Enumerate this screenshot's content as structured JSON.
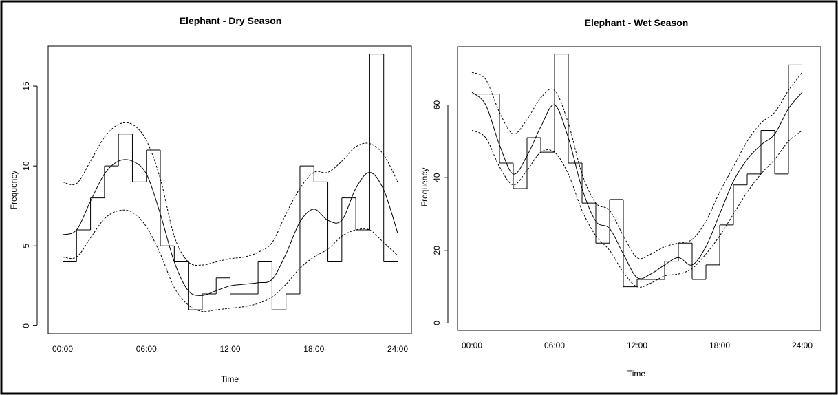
{
  "chart_data": [
    {
      "type": "bar",
      "title": "Elephant - Dry Season",
      "xlabel": "Time",
      "ylabel": "Frequency",
      "xlim": [
        0,
        24
      ],
      "ylim": [
        -0.5,
        17.5
      ],
      "x_ticks": [
        {
          "value": 0,
          "label": "00:00"
        },
        {
          "value": 6,
          "label": "06:00"
        },
        {
          "value": 12,
          "label": "12:00"
        },
        {
          "value": 18,
          "label": "18:00"
        },
        {
          "value": 24,
          "label": "24:00"
        }
      ],
      "y_ticks": [
        {
          "value": 0,
          "label": "0"
        },
        {
          "value": 5,
          "label": "5"
        },
        {
          "value": 10,
          "label": "10"
        },
        {
          "value": 15,
          "label": "15"
        }
      ],
      "bins": [
        {
          "start": 0,
          "end": 1,
          "value": 4
        },
        {
          "start": 1,
          "end": 2,
          "value": 6
        },
        {
          "start": 2,
          "end": 3,
          "value": 8
        },
        {
          "start": 3,
          "end": 4,
          "value": 10
        },
        {
          "start": 4,
          "end": 5,
          "value": 12
        },
        {
          "start": 5,
          "end": 6,
          "value": 9
        },
        {
          "start": 6,
          "end": 7,
          "value": 11
        },
        {
          "start": 7,
          "end": 8,
          "value": 5
        },
        {
          "start": 8,
          "end": 9,
          "value": 4
        },
        {
          "start": 9,
          "end": 10,
          "value": 1
        },
        {
          "start": 10,
          "end": 11,
          "value": 2
        },
        {
          "start": 11,
          "end": 12,
          "value": 3
        },
        {
          "start": 12,
          "end": 13,
          "value": 2
        },
        {
          "start": 13,
          "end": 14,
          "value": 2
        },
        {
          "start": 14,
          "end": 15,
          "value": 4
        },
        {
          "start": 15,
          "end": 16,
          "value": 1
        },
        {
          "start": 16,
          "end": 17,
          "value": 2
        },
        {
          "start": 17,
          "end": 18,
          "value": 10
        },
        {
          "start": 18,
          "end": 19,
          "value": 9
        },
        {
          "start": 19,
          "end": 20,
          "value": 4
        },
        {
          "start": 20,
          "end": 21,
          "value": 8
        },
        {
          "start": 21,
          "end": 22,
          "value": 6
        },
        {
          "start": 22,
          "end": 23,
          "value": 17
        },
        {
          "start": 23,
          "end": 24,
          "value": 4
        }
      ],
      "fit": {
        "x": [
          0,
          1,
          2,
          3,
          4,
          5,
          6,
          7,
          8,
          9,
          10,
          11,
          12,
          13,
          14,
          15,
          16,
          17,
          18,
          19,
          20,
          21,
          22,
          23,
          24
        ],
        "y": [
          5.7,
          6.0,
          7.8,
          9.5,
          10.3,
          10.3,
          9.5,
          7.0,
          4.0,
          2.2,
          1.9,
          2.2,
          2.5,
          2.6,
          2.7,
          2.9,
          4.5,
          6.5,
          7.3,
          6.6,
          6.6,
          8.6,
          9.6,
          8.5,
          5.8
        ]
      },
      "ci_upper": {
        "x": [
          0,
          1,
          2,
          3,
          4,
          5,
          6,
          7,
          8,
          9,
          10,
          11,
          12,
          13,
          14,
          15,
          16,
          17,
          18,
          19,
          20,
          21,
          22,
          23,
          24
        ],
        "y": [
          9.0,
          8.9,
          10.3,
          11.8,
          12.6,
          12.6,
          11.6,
          9.2,
          5.6,
          4.0,
          3.8,
          4.0,
          4.2,
          4.3,
          4.6,
          5.2,
          7.0,
          8.6,
          9.6,
          9.6,
          10.3,
          11.2,
          11.4,
          10.7,
          9.0
        ]
      },
      "ci_lower": {
        "x": [
          0,
          1,
          2,
          3,
          4,
          5,
          6,
          7,
          8,
          9,
          10,
          11,
          12,
          13,
          14,
          15,
          16,
          17,
          18,
          19,
          20,
          21,
          22,
          23,
          24
        ],
        "y": [
          4.3,
          4.3,
          5.5,
          6.7,
          7.2,
          7.1,
          6.2,
          4.5,
          2.4,
          1.3,
          0.9,
          1.0,
          1.1,
          1.2,
          1.4,
          1.8,
          2.6,
          3.6,
          4.3,
          4.8,
          5.6,
          6.0,
          6.0,
          5.2,
          4.4
        ]
      }
    },
    {
      "type": "bar",
      "title": "Elephant - Wet Season",
      "xlabel": "Time",
      "ylabel": "Frequency",
      "xlim": [
        0,
        24
      ],
      "ylim": [
        -2,
        76
      ],
      "x_ticks": [
        {
          "value": 0,
          "label": "00:00"
        },
        {
          "value": 6,
          "label": "06:00"
        },
        {
          "value": 12,
          "label": "12:00"
        },
        {
          "value": 18,
          "label": "18:00"
        },
        {
          "value": 24,
          "label": "24:00"
        }
      ],
      "y_ticks": [
        {
          "value": 0,
          "label": "0"
        },
        {
          "value": 20,
          "label": "20"
        },
        {
          "value": 40,
          "label": "40"
        },
        {
          "value": 60,
          "label": "60"
        }
      ],
      "bins": [
        {
          "start": 0,
          "end": 2,
          "value": 63
        },
        {
          "start": 2,
          "end": 3,
          "value": 44
        },
        {
          "start": 3,
          "end": 4,
          "value": 37
        },
        {
          "start": 4,
          "end": 5,
          "value": 51
        },
        {
          "start": 5,
          "end": 6,
          "value": 47
        },
        {
          "start": 6,
          "end": 7,
          "value": 74
        },
        {
          "start": 7,
          "end": 8,
          "value": 44
        },
        {
          "start": 8,
          "end": 9,
          "value": 33
        },
        {
          "start": 9,
          "end": 10,
          "value": 22
        },
        {
          "start": 10,
          "end": 11,
          "value": 34
        },
        {
          "start": 11,
          "end": 12,
          "value": 10
        },
        {
          "start": 12,
          "end": 14,
          "value": 12
        },
        {
          "start": 14,
          "end": 15,
          "value": 17
        },
        {
          "start": 15,
          "end": 16,
          "value": 22
        },
        {
          "start": 16,
          "end": 17,
          "value": 12
        },
        {
          "start": 17,
          "end": 18,
          "value": 16
        },
        {
          "start": 18,
          "end": 19,
          "value": 27
        },
        {
          "start": 19,
          "end": 20,
          "value": 38
        },
        {
          "start": 20,
          "end": 21,
          "value": 41
        },
        {
          "start": 21,
          "end": 22,
          "value": 53
        },
        {
          "start": 22,
          "end": 23,
          "value": 41
        },
        {
          "start": 23,
          "end": 24,
          "value": 71
        }
      ],
      "fit": {
        "x": [
          0,
          1,
          2,
          3,
          4,
          5,
          6,
          7,
          8,
          9,
          10,
          11,
          12,
          13,
          14,
          15,
          16,
          17,
          18,
          19,
          20,
          21,
          22,
          23,
          24
        ],
        "y": [
          63.5,
          60.0,
          49.0,
          41.0,
          46.0,
          54.0,
          60.0,
          51.0,
          37.0,
          28.0,
          26.0,
          19.0,
          12.5,
          13.5,
          16.0,
          18.0,
          16.0,
          21.0,
          30.0,
          39.0,
          45.0,
          49.0,
          52.0,
          59.0,
          63.5
        ]
      },
      "ci_upper": {
        "x": [
          0,
          1,
          2,
          3,
          4,
          5,
          6,
          7,
          8,
          9,
          10,
          11,
          12,
          13,
          14,
          15,
          16,
          17,
          18,
          19,
          20,
          21,
          22,
          23,
          24
        ],
        "y": [
          69.0,
          67.0,
          58.0,
          52.0,
          56.0,
          62.0,
          64.0,
          55.0,
          41.0,
          33.0,
          31.0,
          24.0,
          18.0,
          19.0,
          21.0,
          22.0,
          23.0,
          28.0,
          36.0,
          43.0,
          50.0,
          55.0,
          58.0,
          64.0,
          69.0
        ]
      },
      "ci_lower": {
        "x": [
          0,
          1,
          2,
          3,
          4,
          5,
          6,
          7,
          8,
          9,
          10,
          11,
          12,
          13,
          14,
          15,
          16,
          17,
          18,
          19,
          20,
          21,
          22,
          23,
          24
        ],
        "y": [
          53.0,
          51.0,
          43.0,
          38.0,
          42.0,
          47.0,
          47.0,
          41.0,
          31.0,
          24.0,
          20.0,
          14.0,
          10.0,
          11.0,
          13.0,
          13.5,
          15.0,
          19.0,
          24.0,
          30.0,
          36.0,
          41.0,
          45.0,
          50.0,
          53.0
        ]
      }
    }
  ]
}
